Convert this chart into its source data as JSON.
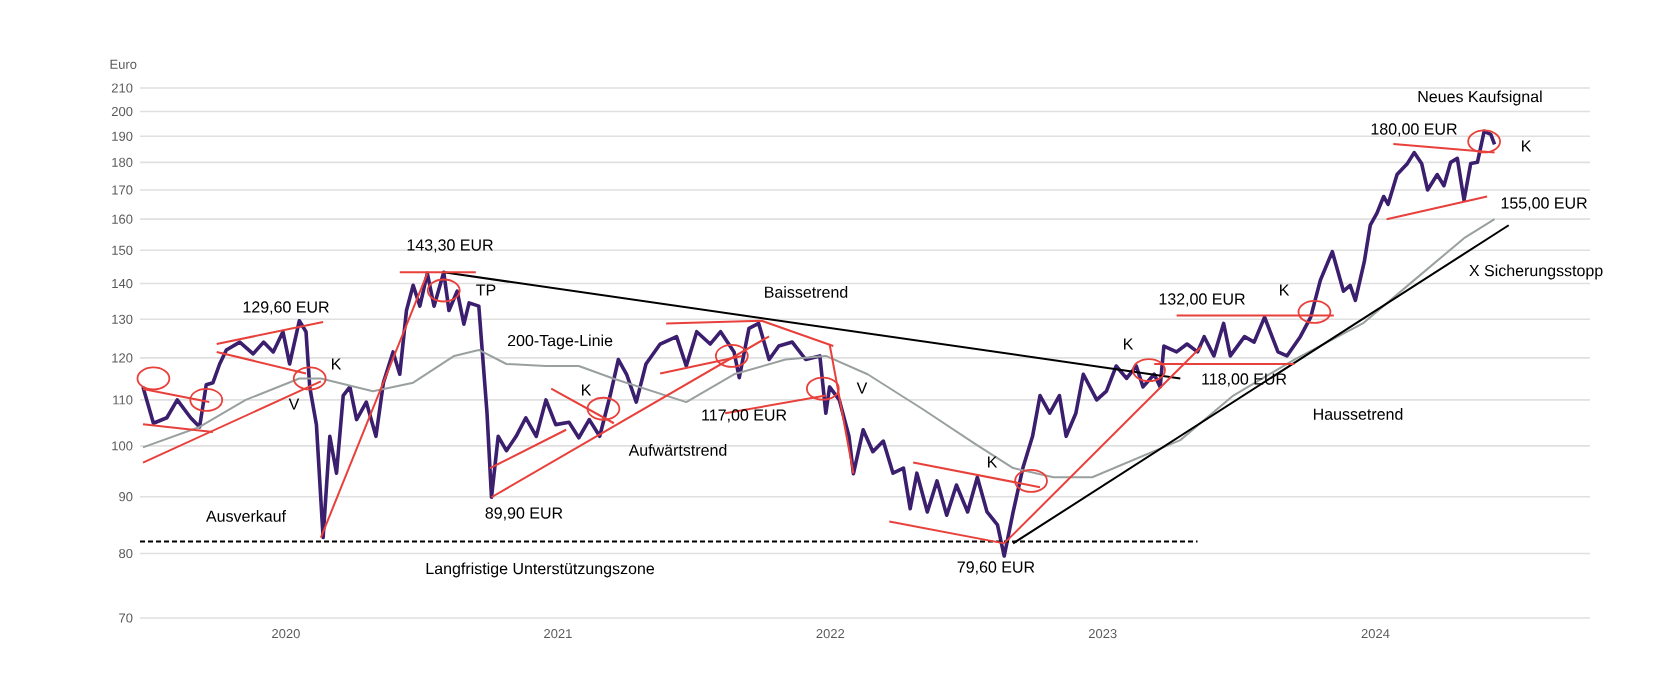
{
  "chart_data": {
    "type": "line",
    "ylabel": "Euro",
    "log": "y",
    "grid": "y",
    "xlim": [
      "2019-12-18",
      "2025-04-15"
    ],
    "ylim": [
      70,
      210
    ],
    "xticks": [
      {
        "value": "2020-07-01",
        "label": "2020"
      },
      {
        "value": "2021-07-01",
        "label": "2021"
      },
      {
        "value": "2022-07-01",
        "label": "2022"
      },
      {
        "value": "2023-07-01",
        "label": "2023"
      },
      {
        "value": "2024-07-01",
        "label": "2024"
      }
    ],
    "yticks": [
      70,
      80,
      90,
      100,
      110,
      120,
      130,
      140,
      150,
      160,
      170,
      180,
      190,
      200,
      210
    ],
    "series": [
      {
        "color": "#3b1f6e",
        "x": [
          "2019-12-22",
          "2020-01-05",
          "2020-01-23",
          "2020-02-06",
          "2020-02-24",
          "2020-03-07",
          "2020-03-16",
          "2020-03-25",
          "2020-04-03",
          "2020-04-12",
          "2020-04-30",
          "2020-05-18",
          "2020-06-01",
          "2020-06-14",
          "2020-06-27",
          "2020-07-06",
          "2020-07-19",
          "2020-07-28",
          "2020-08-02",
          "2020-08-11",
          "2020-08-20",
          "2020-08-29",
          "2020-09-07",
          "2020-09-16",
          "2020-09-25",
          "2020-10-04",
          "2020-10-17",
          "2020-10-30",
          "2020-11-09",
          "2020-11-22",
          "2020-12-01",
          "2020-12-10",
          "2020-12-19",
          "2020-12-28",
          "2021-01-07",
          "2021-01-16",
          "2021-01-29",
          "2021-02-05",
          "2021-02-16",
          "2021-02-25",
          "2021-03-04",
          "2021-03-17",
          "2021-03-28",
          "2021-04-03",
          "2021-04-12",
          "2021-04-23",
          "2021-05-06",
          "2021-05-19",
          "2021-06-02",
          "2021-06-15",
          "2021-06-28",
          "2021-07-16",
          "2021-07-29",
          "2021-08-12",
          "2021-08-26",
          "2021-09-09",
          "2021-09-20",
          "2021-10-01",
          "2021-10-14",
          "2021-10-27",
          "2021-11-15",
          "2021-12-07",
          "2021-12-20",
          "2022-01-03",
          "2022-01-21",
          "2022-02-04",
          "2022-02-22",
          "2022-03-01",
          "2022-03-14",
          "2022-03-27",
          "2022-04-10",
          "2022-04-23",
          "2022-05-11",
          "2022-05-29",
          "2022-06-17",
          "2022-06-25",
          "2022-06-30",
          "2022-07-13",
          "2022-07-26",
          "2022-08-01",
          "2022-08-14",
          "2022-08-27",
          "2022-09-10",
          "2022-09-23",
          "2022-10-07",
          "2022-10-16",
          "2022-10-25",
          "2022-11-08",
          "2022-11-21",
          "2022-12-04",
          "2022-12-17",
          "2023-01-01",
          "2023-01-14",
          "2023-01-27",
          "2023-02-10",
          "2023-02-19",
          "2023-03-03",
          "2023-03-16",
          "2023-03-29",
          "2023-04-08",
          "2023-04-21",
          "2023-05-04",
          "2023-05-13",
          "2023-05-26",
          "2023-06-05",
          "2023-06-23",
          "2023-07-06",
          "2023-07-19",
          "2023-08-02",
          "2023-08-15",
          "2023-08-24",
          "2023-09-08",
          "2023-09-16",
          "2023-09-21",
          "2023-10-08",
          "2023-10-22",
          "2023-11-05",
          "2023-11-14",
          "2023-11-27",
          "2023-12-10",
          "2023-12-19",
          "2024-01-07",
          "2024-01-20",
          "2024-02-03",
          "2024-02-21",
          "2024-03-04",
          "2024-03-22",
          "2024-04-05",
          "2024-04-18",
          "2024-05-04",
          "2024-05-19",
          "2024-05-28",
          "2024-06-04",
          "2024-06-16",
          "2024-06-24",
          "2024-07-03",
          "2024-07-12",
          "2024-07-18",
          "2024-07-30",
          "2024-08-13",
          "2024-08-22",
          "2024-09-01",
          "2024-09-09",
          "2024-09-22",
          "2024-10-01",
          "2024-10-10",
          "2024-10-19",
          "2024-10-28",
          "2024-11-06",
          "2024-11-15",
          "2024-11-24",
          "2024-12-03",
          "2024-12-08"
        ],
        "values": [
          113,
          104.8,
          106,
          110,
          106,
          104,
          113.5,
          114,
          118.5,
          122,
          124,
          121,
          124,
          121.5,
          126.7,
          118.5,
          129.6,
          126.7,
          113,
          104.5,
          82.7,
          102,
          94.5,
          111,
          113,
          105.6,
          109.5,
          102,
          114,
          121.5,
          116,
          132.4,
          139.5,
          133.6,
          143,
          133.6,
          143.3,
          132.4,
          137.8,
          128.7,
          134.5,
          133.6,
          107,
          89.9,
          102,
          99,
          102,
          106,
          102,
          110,
          104.5,
          105,
          101.7,
          105.6,
          102,
          111,
          119.6,
          116,
          109.5,
          118.5,
          123.5,
          125.4,
          118,
          126.7,
          123.5,
          126.7,
          121.5,
          115.2,
          127.6,
          128.9,
          119.6,
          123,
          124,
          119.6,
          120.5,
          107,
          113,
          110,
          102,
          94.4,
          103.4,
          98.8,
          101,
          94.5,
          95.5,
          87.8,
          94.5,
          87.2,
          93,
          86.6,
          92.2,
          87.2,
          93.7,
          87.2,
          84.9,
          79.6,
          87.2,
          95.5,
          102,
          111,
          107,
          111,
          102,
          107,
          116,
          110,
          112,
          118,
          115,
          118,
          113,
          116,
          113,
          123,
          121.5,
          123.5,
          121.5,
          125.4,
          120.5,
          128.9,
          120.5,
          125.4,
          124,
          130.6,
          121.5,
          120.5,
          125.4,
          130.6,
          141,
          149.6,
          137.8,
          139.5,
          135.2,
          146.5,
          158,
          162,
          167.7,
          165,
          175.5,
          179.6,
          183.7,
          179.6,
          170,
          175.5,
          171.5,
          180,
          181.5,
          166.4,
          179.6,
          180,
          192,
          190.8,
          186.8
        ]
      },
      {
        "color": "#9aa0a0",
        "x": [
          "2019-12-22",
          "2020-03-07",
          "2020-05-08",
          "2020-07-19",
          "2020-08-17",
          "2020-10-26",
          "2020-12-19",
          "2021-02-12",
          "2021-03-17",
          "2021-04-23",
          "2021-06-15",
          "2021-07-29",
          "2021-09-13",
          "2021-12-20",
          "2022-02-22",
          "2022-05-02",
          "2022-06-25",
          "2022-08-20",
          "2022-11-01",
          "2023-01-11",
          "2023-03-03",
          "2023-04-26",
          "2023-06-17",
          "2023-10-13",
          "2023-12-23",
          "2024-03-14",
          "2024-06-14",
          "2024-08-22",
          "2024-10-28",
          "2024-12-08"
        ],
        "values": [
          99.7,
          104,
          110,
          115,
          115,
          112,
          114,
          120.5,
          122,
          118.5,
          118,
          118,
          115,
          109.5,
          116,
          119.6,
          120.5,
          116,
          108,
          100.4,
          95.5,
          93.7,
          93.7,
          101.2,
          111,
          119.6,
          128.9,
          141,
          153.8,
          160
        ]
      },
      {
        "color": "#000000",
        "x": [
          "2021-01-29",
          "2023-10-13"
        ],
        "values": [
          143.3,
          115
        ]
      },
      {
        "color": "#000000",
        "x": [
          "2023-03-03",
          "2024-12-27"
        ],
        "values": [
          81.7,
          158
        ]
      },
      {
        "color": "#000000",
        "line_style": "dashed",
        "x": [
          "2019-12-18",
          "2023-11-05"
        ],
        "values": [
          82,
          82
        ]
      },
      {
        "color": "#e8413c",
        "x": [
          "2019-12-22",
          "2020-03-20"
        ],
        "values": [
          112.5,
          109.5
        ]
      },
      {
        "color": "#e8413c",
        "x": [
          "2019-12-22",
          "2020-03-25"
        ],
        "values": [
          104.6,
          102.9
        ]
      },
      {
        "color": "#e8413c",
        "x": [
          "2019-12-22",
          "2020-08-17"
        ],
        "values": [
          96.6,
          114.3
        ]
      },
      {
        "color": "#e8413c",
        "x": [
          "2020-03-30",
          "2020-08-20"
        ],
        "values": [
          123.5,
          129.3
        ]
      },
      {
        "color": "#e8413c",
        "x": [
          "2020-03-30",
          "2020-07-28"
        ],
        "values": [
          121.5,
          116.2
        ]
      },
      {
        "color": "#e8413c",
        "x": [
          "2020-08-17",
          "2021-01-07"
        ],
        "values": [
          82.7,
          143
        ]
      },
      {
        "color": "#e8413c",
        "x": [
          "2020-12-01",
          "2021-03-13"
        ],
        "values": [
          143.3,
          143.3
        ]
      },
      {
        "color": "#e8413c",
        "x": [
          "2021-04-01",
          "2021-07-12"
        ],
        "values": [
          95.5,
          103.4
        ]
      },
      {
        "color": "#e8413c",
        "x": [
          "2021-04-03",
          "2022-04-10"
        ],
        "values": [
          89.9,
          125.5
        ]
      },
      {
        "color": "#e8413c",
        "x": [
          "2021-06-22",
          "2021-09-14"
        ],
        "values": [
          112.6,
          104.8
        ]
      },
      {
        "color": "#e8413c",
        "x": [
          "2021-11-23",
          "2022-03-31",
          "2022-07-05"
        ],
        "values": [
          128.9,
          129.6,
          123
        ]
      },
      {
        "color": "#e8413c",
        "x": [
          "2022-06-30",
          "2022-08-01"
        ],
        "values": [
          123.5,
          94.4
        ]
      },
      {
        "color": "#e8413c",
        "x": [
          "2021-11-15",
          "2022-03-05"
        ],
        "values": [
          116.2,
          120.5
        ]
      },
      {
        "color": "#e8413c",
        "x": [
          "2022-02-10",
          "2022-06-25"
        ],
        "values": [
          107,
          111
        ]
      },
      {
        "color": "#e8413c",
        "x": [
          "2022-10-20",
          "2023-04-08"
        ],
        "values": [
          96.6,
          91.8
        ]
      },
      {
        "color": "#e8413c",
        "x": [
          "2022-09-18",
          "2023-02-19"
        ],
        "values": [
          85.5,
          81.7
        ]
      },
      {
        "color": "#e8413c",
        "x": [
          "2023-02-19",
          "2023-11-10"
        ],
        "values": [
          81.7,
          122.8
        ]
      },
      {
        "color": "#e8413c",
        "x": [
          "2023-09-08",
          "2024-03-14"
        ],
        "values": [
          118.5,
          118.5
        ]
      },
      {
        "color": "#e8413c",
        "x": [
          "2023-10-08",
          "2024-05-06"
        ],
        "values": [
          131,
          131
        ]
      },
      {
        "color": "#e8413c",
        "x": [
          "2024-07-25",
          "2024-12-08"
        ],
        "values": [
          187,
          183.7
        ]
      },
      {
        "color": "#e8413c",
        "x": [
          "2024-07-16",
          "2024-11-28"
        ],
        "values": [
          160,
          167.7
        ]
      },
      {
        "type": "scatter",
        "marker": "circle",
        "color": "#e8413c",
        "x": [
          "2020-01-05",
          "2020-03-16",
          "2020-08-02",
          "2021-01-29",
          "2021-08-31",
          "2022-02-19",
          "2022-06-21",
          "2023-03-27",
          "2023-09-01",
          "2024-04-10",
          "2024-11-24"
        ],
        "values": [
          115,
          110,
          115,
          138,
          108,
          120.5,
          112.6,
          93,
          117,
          132,
          188
        ]
      }
    ],
    "annotations": [
      "129,60 EUR",
      "143,30 EUR",
      "TP",
      "K",
      "V",
      "Ausverkauf",
      "89,90 EUR",
      "K",
      "Aufwärtstrend",
      "Baissetrend",
      "117,00 EUR",
      "V",
      "K",
      "79,60 EUR",
      "Langfristige Unterstützungszone",
      "200-Tage-Linie",
      "K",
      "118,00 EUR",
      "132,00 EUR",
      "K",
      "Haussetrend",
      "180,00 EUR",
      "Neues Kaufsignal",
      "K",
      "155,00 EUR",
      "X Sicherungsstopp"
    ]
  }
}
